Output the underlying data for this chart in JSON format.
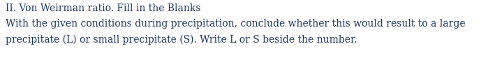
{
  "title": "II. Von Weirman ratio. Fill in the Blanks",
  "body_line1": "With the given conditions during precipitation, conclude whether this would result to a large",
  "body_line2": "precipitate (L) or small precipitate (S). Write L or S beside the number.",
  "title_color": "#1F3864",
  "body_color": "#1F3864",
  "title_fontsize": 10.0,
  "body_fontsize": 10.0,
  "background_color": "#ffffff",
  "fig_width": 7.09,
  "fig_height": 0.83
}
